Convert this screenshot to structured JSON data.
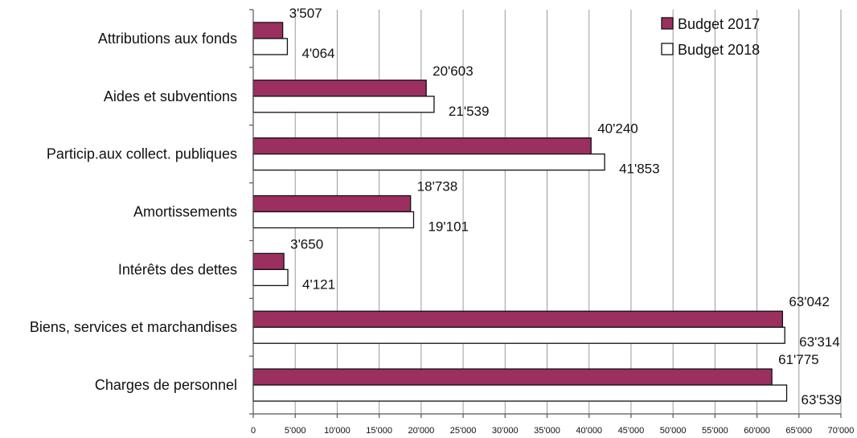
{
  "chart_data": {
    "type": "bar",
    "orientation": "horizontal",
    "categories": [
      "Attributions aux fonds",
      "Aides et subventions",
      "Particip.aux collect. publiques",
      "Amortissements",
      "Intérêts des dettes",
      "Biens, services et marchandises",
      "Charges de personnel"
    ],
    "series": [
      {
        "name": "Budget 2017",
        "color": "#9b3060",
        "values": [
          3507,
          20603,
          40240,
          18738,
          3650,
          63042,
          61775
        ],
        "labels": [
          "3'507",
          "20'603",
          "40'240",
          "18'738",
          "3'650",
          "63'042",
          "61'775"
        ]
      },
      {
        "name": "Budget 2018",
        "color": "#ffffff",
        "values": [
          4064,
          21539,
          41853,
          19101,
          4121,
          63314,
          63539
        ],
        "labels": [
          "4'064",
          "21'539",
          "41'853",
          "19'101",
          "4'121",
          "63'314",
          "63'539"
        ]
      }
    ],
    "xlim": [
      0,
      70000
    ],
    "xticks": [
      0,
      5000,
      10000,
      15000,
      20000,
      25000,
      30000,
      35000,
      40000,
      45000,
      50000,
      55000,
      60000,
      65000,
      70000
    ],
    "xtick_labels": [
      "0",
      "5'000",
      "10'000",
      "15'000",
      "20'000",
      "25'000",
      "30'000",
      "35'000",
      "40'000",
      "45'000",
      "50'000",
      "55'000",
      "60'000",
      "65'000",
      "70'000"
    ],
    "grid": "vertical",
    "legend": "top-right",
    "title": "",
    "xlabel": "",
    "ylabel": ""
  }
}
